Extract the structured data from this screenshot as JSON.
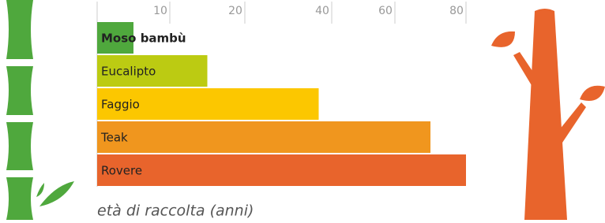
{
  "chart_data": {
    "type": "hbar",
    "x_label": "età di raccolta (anni)",
    "categories": [
      "Moso bambù",
      "Eucalipto",
      "Faggio",
      "Teak",
      "Rovere"
    ],
    "values": [
      5,
      15,
      37,
      70,
      80
    ],
    "colors": [
      "#4fa83d",
      "#bccb12",
      "#fcc700",
      "#f0961e",
      "#e8642c"
    ],
    "xlim": [
      0,
      80
    ],
    "xticks": [
      10,
      20,
      40,
      60,
      80
    ]
  }
}
